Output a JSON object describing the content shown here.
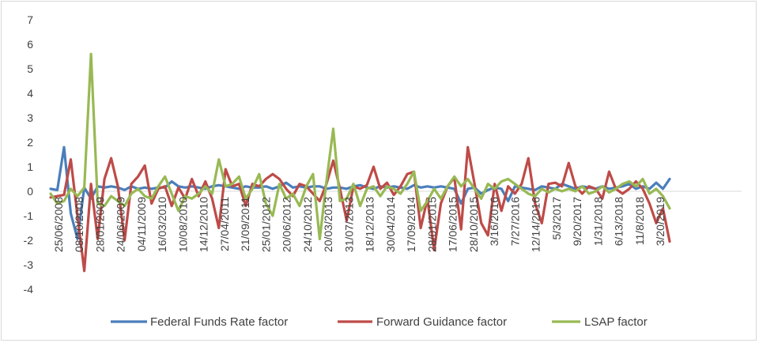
{
  "chart_data": {
    "type": "line",
    "title": "",
    "xlabel": "",
    "ylabel": "",
    "ylim": [
      -4,
      7
    ],
    "yticks": [
      -4,
      -3,
      -2,
      -1,
      0,
      1,
      2,
      3,
      4,
      5,
      6,
      7
    ],
    "grid": false,
    "legend": "bottom",
    "x_tick_labels": [
      "25/06/2008",
      "08/10/2008",
      "28/01/2009",
      "24/06/2009",
      "04/11/2009",
      "16/03/2010",
      "10/08/2010",
      "14/12/2010",
      "27/04/2011",
      "21/09/2011",
      "25/01/2012",
      "20/06/2012",
      "24/10/2012",
      "20/03/2013",
      "31/07/2013",
      "18/12/2013",
      "30/04/2014",
      "17/09/2014",
      "28/01/2015",
      "17/06/2015",
      "28/10/2015",
      "3/16/2016",
      "7/27/2016",
      "12/14/2016",
      "5/3/2017",
      "9/20/2017",
      "1/31/2018",
      "6/13/2018",
      "11/8/2018",
      "3/20/2019"
    ],
    "series": [
      {
        "name": "Federal Funds Rate factor",
        "color": "#4a7ebb",
        "values": [
          0.1,
          0.05,
          1.8,
          -0.9,
          -1.95,
          0.15,
          -0.3,
          0.2,
          0.15,
          0.2,
          0.15,
          0.05,
          0.2,
          0.1,
          0.15,
          0.1,
          0.15,
          0.15,
          0.4,
          0.2,
          0.15,
          0.2,
          0.15,
          0.1,
          0.2,
          0.25,
          0.2,
          0.15,
          0.1,
          0.2,
          0.15,
          0.15,
          0.2,
          0.1,
          0.2,
          0.35,
          0.15,
          0.2,
          0.15,
          0.2,
          0.2,
          0.1,
          0.15,
          0.15,
          0.1,
          0.2,
          0.25,
          0.15,
          0.1,
          0.2,
          0.15,
          0.2,
          0.15,
          0.1,
          0.25,
          0.15,
          0.2,
          0.15,
          0.2,
          0.15,
          0.1,
          -0.5,
          0.1,
          0.15,
          -0.1,
          0.05,
          0.15,
          0.1,
          -0.4,
          0.2,
          0.15,
          0.1,
          0.05,
          0.2,
          0.15,
          0.1,
          0.3,
          0.2,
          0.1,
          0.2,
          0.15,
          0.1,
          0.2,
          0.1,
          0.15,
          0.2,
          0.3,
          0.1,
          0.2,
          0.1,
          0.35,
          0.1,
          0.5
        ]
      },
      {
        "name": "Forward Guidance factor",
        "color": "#be4b48",
        "values": [
          -0.25,
          -0.2,
          -0.15,
          1.3,
          -1.0,
          -3.25,
          0.3,
          -1.95,
          0.5,
          1.35,
          0.2,
          -2.0,
          0.3,
          0.6,
          1.05,
          -0.5,
          0.1,
          0.2,
          -0.6,
          0.15,
          -0.3,
          0.5,
          -0.2,
          0.4,
          -0.3,
          -1.5,
          0.9,
          0.2,
          0.3,
          -0.6,
          0.3,
          0.2,
          0.5,
          0.7,
          0.5,
          0.1,
          -0.2,
          0.3,
          0.2,
          -0.1,
          -0.4,
          0.3,
          1.25,
          0.1,
          -1.2,
          0.2,
          0.1,
          0.25,
          1.0,
          0.1,
          0.35,
          -0.15,
          0.2,
          0.7,
          0.8,
          -1.5,
          -0.3,
          -2.4,
          -0.5,
          0.2,
          0.55,
          -1.55,
          1.8,
          0.3,
          -1.3,
          -1.8,
          0.3,
          -0.8,
          0.2,
          -0.1,
          0.3,
          1.35,
          -0.5,
          -1.3,
          0.3,
          0.35,
          0.2,
          1.15,
          0.2,
          -0.1,
          0.2,
          0.1,
          -0.3,
          0.8,
          0.1,
          -0.1,
          0.1,
          0.4,
          0.1,
          -0.5,
          -1.3,
          -0.7,
          -2.05
        ]
      },
      {
        "name": "LSAP factor",
        "color": "#98b954",
        "values": [
          -0.1,
          -0.5,
          -0.4,
          0.1,
          -0.2,
          0.15,
          5.6,
          -0.5,
          -0.6,
          -0.2,
          -0.4,
          -0.6,
          -0.1,
          0.1,
          -0.2,
          -0.3,
          0.2,
          0.6,
          -0.1,
          -0.8,
          -0.2,
          -0.3,
          -0.1,
          0.2,
          -0.1,
          1.3,
          0.2,
          0.3,
          0.6,
          -0.3,
          0.1,
          0.7,
          -0.5,
          -1.0,
          0.3,
          -0.3,
          -0.1,
          -0.6,
          0.2,
          0.7,
          -1.95,
          0.4,
          2.55,
          -0.4,
          -0.3,
          0.3,
          -0.6,
          0.1,
          0.2,
          -0.2,
          0.2,
          0.1,
          -0.1,
          0.3,
          0.8,
          -0.8,
          -0.4,
          0.1,
          -0.3,
          0.2,
          0.6,
          0.2,
          0.5,
          0.1,
          -0.3,
          0.3,
          0.1,
          0.4,
          0.5,
          0.3,
          0.1,
          -0.1,
          -0.2,
          0.1,
          -0.05,
          0.1,
          0.0,
          0.1,
          0.0,
          0.2,
          -0.1,
          0.0,
          0.2,
          -0.05,
          0.1,
          0.3,
          0.4,
          0.2,
          0.5,
          -0.1,
          0.1,
          -0.2,
          -0.7
        ]
      }
    ]
  }
}
